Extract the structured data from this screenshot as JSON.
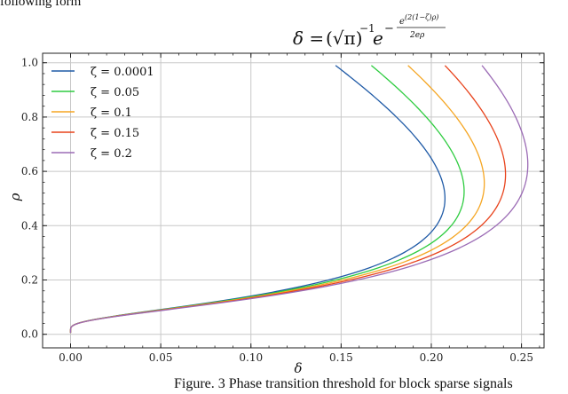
{
  "page": {
    "intro_text": "following form",
    "caption": "Figure. 3 Phase transition threshold for block sparse signals"
  },
  "formula": {
    "lhs": "δ = ",
    "root": "(√π)",
    "root_exp": "−1",
    "base": "e",
    "neg": "−",
    "numerator": "e",
    "numerator_exp": "(2(1−ζ)ρ)",
    "denominator": "2eρ"
  },
  "chart_data": {
    "type": "line",
    "xlabel": "δ",
    "ylabel": "ρ",
    "xlim": [
      -0.0155,
      0.2625
    ],
    "ylim": [
      -0.05,
      1.035
    ],
    "xticks": [
      "0.00",
      "0.05",
      "0.10",
      "0.15",
      "0.20",
      "0.25"
    ],
    "yticks": [
      "0.0",
      "0.2",
      "0.4",
      "0.6",
      "0.8",
      "1.0"
    ],
    "grid": true,
    "legend_position": "top-left",
    "series": [
      {
        "name": "ζ = 0.0001",
        "zeta": 0.0001,
        "color": "#1f5aa6"
      },
      {
        "name": "ζ = 0.05",
        "zeta": 0.05,
        "color": "#2ecc40"
      },
      {
        "name": "ζ = 0.1",
        "zeta": 0.1,
        "color": "#f5a623"
      },
      {
        "name": "ζ = 0.15",
        "zeta": 0.15,
        "color": "#e8431c"
      },
      {
        "name": "ζ = 0.2",
        "zeta": 0.2,
        "color": "#9b6bb5"
      }
    ],
    "rho_range": [
      0.005,
      0.99
    ]
  }
}
